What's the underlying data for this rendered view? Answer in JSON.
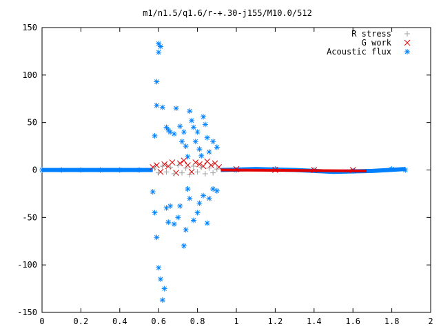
{
  "chart_data": {
    "type": "scatter",
    "title": "m1/n1.5/q1.6/r-+.30-j155/M10.0/512",
    "xlabel": "",
    "ylabel": "",
    "xlim": [
      0,
      2
    ],
    "ylim": [
      -150,
      150
    ],
    "x_ticks": [
      0,
      0.2,
      0.4,
      0.6,
      0.8,
      1,
      1.2,
      1.4,
      1.6,
      1.8,
      2
    ],
    "x_tick_labels": [
      "0",
      "0.2",
      "0.4",
      "0.6",
      "0.8",
      "1",
      "1.2",
      "1.4",
      "1.6",
      "1.8",
      "2"
    ],
    "y_ticks": [
      -150,
      -100,
      -50,
      0,
      50,
      100,
      150
    ],
    "y_tick_labels": [
      "-150",
      "-100",
      "-50",
      "0",
      "50",
      "100",
      "150"
    ],
    "grid": false,
    "legend_position": "top-right",
    "series": [
      {
        "name": "R stress",
        "marker": "plus",
        "color": "#a0a0a0",
        "points": [
          [
            0.58,
            2
          ],
          [
            0.6,
            -3
          ],
          [
            0.62,
            4
          ],
          [
            0.64,
            -2
          ],
          [
            0.66,
            3
          ],
          [
            0.68,
            -4
          ],
          [
            0.7,
            5
          ],
          [
            0.72,
            -3
          ],
          [
            0.74,
            2
          ],
          [
            0.76,
            -5
          ],
          [
            0.78,
            4
          ],
          [
            0.8,
            -2
          ],
          [
            0.82,
            3
          ],
          [
            0.84,
            -4
          ],
          [
            0.86,
            2
          ],
          [
            0.88,
            -3
          ],
          [
            0.9,
            1
          ]
        ]
      },
      {
        "name": "G work",
        "marker": "cross",
        "color": "#e00000",
        "points": [
          [
            0.57,
            3
          ],
          [
            0.59,
            5
          ],
          [
            0.61,
            -2
          ],
          [
            0.63,
            6
          ],
          [
            0.65,
            4
          ],
          [
            0.67,
            8
          ],
          [
            0.69,
            -3
          ],
          [
            0.71,
            7
          ],
          [
            0.73,
            10
          ],
          [
            0.75,
            5
          ],
          [
            0.77,
            -2
          ],
          [
            0.79,
            8
          ],
          [
            0.81,
            6
          ],
          [
            0.83,
            4
          ],
          [
            0.85,
            9
          ],
          [
            0.87,
            5
          ],
          [
            0.89,
            7
          ],
          [
            0.91,
            3
          ],
          [
            1.0,
            1
          ],
          [
            1.2,
            0
          ],
          [
            1.4,
            0
          ],
          [
            1.6,
            0
          ]
        ]
      },
      {
        "name": "Acoustic flux",
        "marker": "star",
        "color": "#0080ff",
        "points": [
          [
            0.58,
            36
          ],
          [
            0.59,
            68
          ],
          [
            0.59,
            93
          ],
          [
            0.6,
            124
          ],
          [
            0.6,
            133
          ],
          [
            0.61,
            130
          ],
          [
            0.62,
            66
          ],
          [
            0.64,
            45
          ],
          [
            0.65,
            42
          ],
          [
            0.66,
            40
          ],
          [
            0.68,
            38
          ],
          [
            0.69,
            65
          ],
          [
            0.71,
            46
          ],
          [
            0.72,
            30
          ],
          [
            0.73,
            40
          ],
          [
            0.74,
            25
          ],
          [
            0.75,
            14
          ],
          [
            0.76,
            62
          ],
          [
            0.77,
            52
          ],
          [
            0.78,
            45
          ],
          [
            0.79,
            30
          ],
          [
            0.8,
            40
          ],
          [
            0.81,
            22
          ],
          [
            0.82,
            15
          ],
          [
            0.83,
            56
          ],
          [
            0.84,
            48
          ],
          [
            0.85,
            34
          ],
          [
            0.86,
            19
          ],
          [
            0.88,
            30
          ],
          [
            0.9,
            24
          ],
          [
            0.57,
            -23
          ],
          [
            0.58,
            -45
          ],
          [
            0.59,
            -71
          ],
          [
            0.6,
            -103
          ],
          [
            0.61,
            -115
          ],
          [
            0.62,
            -137
          ],
          [
            0.63,
            -125
          ],
          [
            0.64,
            -40
          ],
          [
            0.65,
            -55
          ],
          [
            0.66,
            -38
          ],
          [
            0.68,
            -57
          ],
          [
            0.7,
            -50
          ],
          [
            0.71,
            -38
          ],
          [
            0.73,
            -80
          ],
          [
            0.74,
            -63
          ],
          [
            0.75,
            -20
          ],
          [
            0.76,
            -30
          ],
          [
            0.78,
            -53
          ],
          [
            0.8,
            -45
          ],
          [
            0.81,
            -35
          ],
          [
            0.83,
            -27
          ],
          [
            0.85,
            -56
          ],
          [
            0.86,
            -30
          ],
          [
            0.88,
            -20
          ],
          [
            0.9,
            -22
          ],
          [
            0.0,
            0
          ],
          [
            0.1,
            0
          ],
          [
            0.2,
            0
          ],
          [
            0.3,
            0
          ],
          [
            0.4,
            0
          ],
          [
            0.5,
            0
          ],
          [
            1.0,
            0
          ],
          [
            1.2,
            1
          ],
          [
            1.4,
            0
          ],
          [
            1.6,
            -1
          ],
          [
            1.8,
            1
          ],
          [
            1.87,
            0
          ]
        ]
      }
    ]
  }
}
